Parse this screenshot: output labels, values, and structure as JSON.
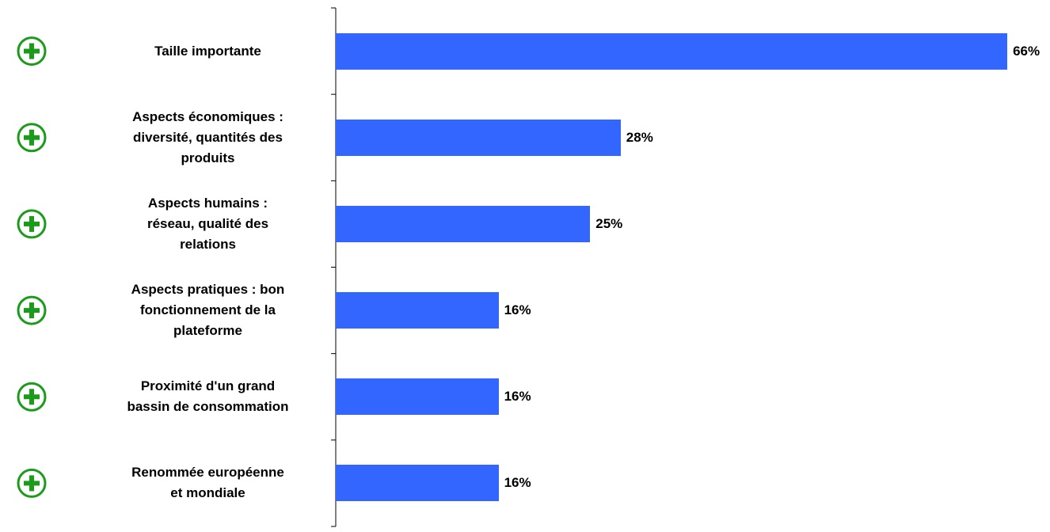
{
  "chart_data": {
    "type": "bar",
    "orientation": "horizontal",
    "categories": [
      "Taille importante",
      "Aspects économiques :\ndiversité, quantités des\nproduits",
      "Aspects humains :\nréseau, qualité des\nrelations",
      "Aspects pratiques : bon\nfonctionnement de la\nplateforme",
      "Proximité d'un grand\nbassin de consommation",
      "Renommée européenne\net mondiale"
    ],
    "values": [
      66,
      28,
      25,
      16,
      16,
      16
    ],
    "value_labels": [
      "66%",
      "28%",
      "25%",
      "16%",
      "16%",
      "16%"
    ],
    "color": "#3366ff"
  }
}
